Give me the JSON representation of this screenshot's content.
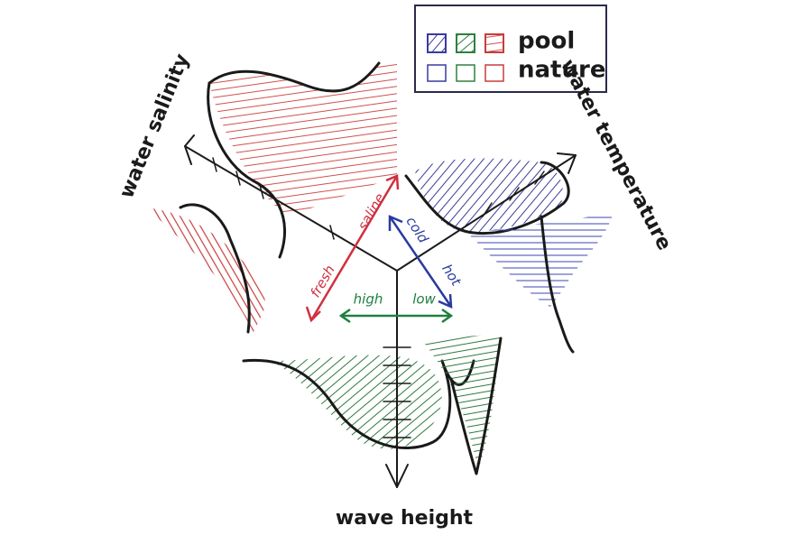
{
  "legend": {
    "items": [
      {
        "label": "pool"
      },
      {
        "label": "nature"
      }
    ]
  },
  "axes": [
    {
      "label": "water salinity",
      "low": "fresh",
      "high": "saline"
    },
    {
      "label": "water temperature",
      "low": "cold",
      "high": "hot"
    },
    {
      "label": "wave height",
      "low": "high",
      "high": "low"
    }
  ]
}
